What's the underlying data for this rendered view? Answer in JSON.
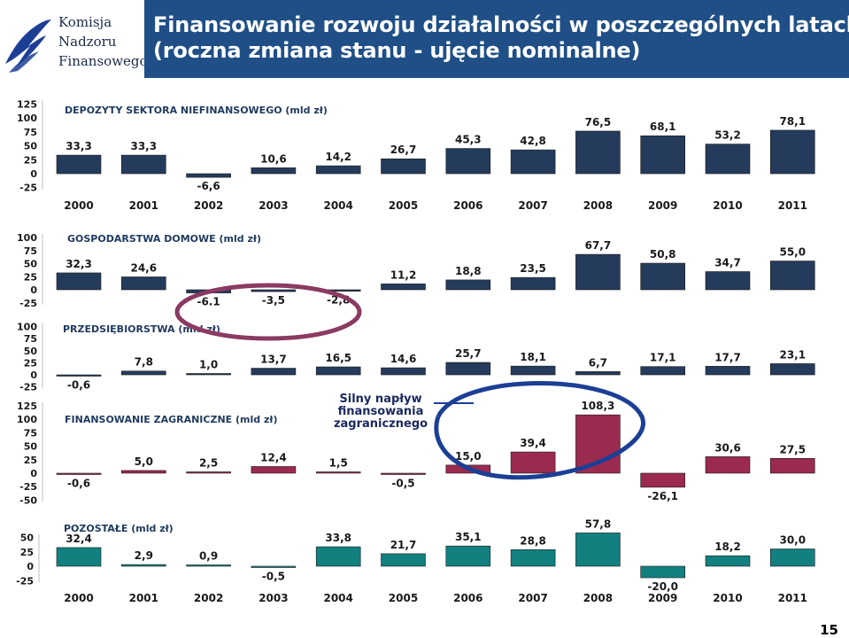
{
  "logo": {
    "lines": [
      "Komisja",
      "Nadzoru",
      "Finansowego"
    ]
  },
  "title": {
    "line1": "Finansowanie rozwoju działalności w poszczególnych latach",
    "line2": "(roczna zmiana stanu - ujęcie nominalne)"
  },
  "callout": {
    "line1": "Silny napływ",
    "line2": "finansowania",
    "line3": "zagranicznego"
  },
  "page_number": "15",
  "colors": {
    "title_bar": "#1f4f86",
    "navy_bar": "#253b5c",
    "maroon_bar": "#9b2a4f",
    "teal_bar": "#138080",
    "circle_purple": "#8b3a62",
    "circle_blue": "#1c3f95"
  },
  "chart_data": [
    {
      "type": "bar",
      "title": "DEPOZYTY SEKTORA NIEFINANSOWEGO (mld zł)",
      "categories": [
        "2000",
        "2001",
        "2002",
        "2003",
        "2004",
        "2005",
        "2006",
        "2007",
        "2008",
        "2009",
        "2010",
        "2011"
      ],
      "values": [
        33.3,
        33.3,
        -6.6,
        10.6,
        14.2,
        26.7,
        45.3,
        42.8,
        76.5,
        68.1,
        53.2,
        78.1
      ],
      "value_labels": [
        "33,3",
        "33,3",
        "-6,6",
        "10,6",
        "14,2",
        "26,7",
        "45,3",
        "42,8",
        "76,5",
        "68,1",
        "53,2",
        "78,1"
      ],
      "yticks": [
        "125",
        "100",
        "75",
        "50",
        "25",
        "0",
        "-25"
      ],
      "ylim": [
        -25,
        125
      ],
      "color": "#253b5c"
    },
    {
      "type": "bar",
      "title": "GOSPODARSTWA DOMOWE (mld zł)",
      "categories": [
        "2000",
        "2001",
        "2002",
        "2003",
        "2004",
        "2005",
        "2006",
        "2007",
        "2008",
        "2009",
        "2010",
        "2011"
      ],
      "values": [
        32.3,
        24.6,
        -6.1,
        -3.5,
        -2.8,
        11.2,
        18.8,
        23.5,
        67.7,
        50.8,
        34.7,
        55.0
      ],
      "value_labels": [
        "32,3",
        "24,6",
        "-6.1",
        "-3,5",
        "-2,8",
        "11,2",
        "18,8",
        "23,5",
        "67,7",
        "50,8",
        "34,7",
        "55,0"
      ],
      "yticks": [
        "100",
        "75",
        "50",
        "25",
        "0",
        "-25"
      ],
      "ylim": [
        -25,
        100
      ],
      "color": "#253b5c"
    },
    {
      "type": "bar",
      "title": "PRZEDSIĘBIORSTWA (mld zł)",
      "categories": [
        "2000",
        "2001",
        "2002",
        "2003",
        "2004",
        "2005",
        "2006",
        "2007",
        "2008",
        "2009",
        "2010",
        "2011"
      ],
      "values": [
        -0.6,
        7.8,
        1.0,
        13.7,
        16.5,
        14.6,
        25.7,
        18.1,
        6.7,
        17.1,
        17.7,
        23.1
      ],
      "value_labels": [
        "-0,6",
        "7,8",
        "1,0",
        "13,7",
        "16,5",
        "14,6",
        "25,7",
        "18,1",
        "6,7",
        "17,1",
        "17,7",
        "23,1"
      ],
      "yticks": [
        "100",
        "75",
        "50",
        "25",
        "0",
        "-25"
      ],
      "ylim": [
        -25,
        100
      ],
      "color": "#253b5c"
    },
    {
      "type": "bar",
      "title": "FINANSOWANIE ZAGRANICZNE (mld zł)",
      "categories": [
        "2000",
        "2001",
        "2002",
        "2003",
        "2004",
        "2005",
        "2006",
        "2007",
        "2008",
        "2009",
        "2010",
        "2011"
      ],
      "values": [
        -0.6,
        5.0,
        2.5,
        12.4,
        1.5,
        -0.5,
        15.0,
        39.4,
        108.3,
        -26.1,
        30.6,
        27.5
      ],
      "value_labels": [
        "-0,6",
        "5,0",
        "2,5",
        "12,4",
        "1,5",
        "-0,5",
        "15,0",
        "39,4",
        "108,3",
        "-26,1",
        "30,6",
        "27,5"
      ],
      "yticks": [
        "125",
        "100",
        "75",
        "50",
        "25",
        "0",
        "-25",
        "-50"
      ],
      "ylim": [
        -50,
        125
      ],
      "color": "#9b2a4f"
    },
    {
      "type": "bar",
      "title": "POZOSTAŁE (mld zł)",
      "categories": [
        "2000",
        "2001",
        "2002",
        "2003",
        "2004",
        "2005",
        "2006",
        "2007",
        "2008",
        "2009",
        "2010",
        "2011"
      ],
      "values": [
        32.4,
        2.9,
        0.9,
        -0.5,
        33.8,
        21.7,
        35.1,
        28.8,
        57.8,
        -20.0,
        18.2,
        30.0
      ],
      "value_labels": [
        "32,4",
        "2,9",
        "0,9",
        "-0,5",
        "33,8",
        "21,7",
        "35,1",
        "28,8",
        "57,8",
        "-20,0",
        "18,2",
        "30,0"
      ],
      "yticks": [
        "50",
        "25",
        "0",
        "-25"
      ],
      "ylim": [
        -25,
        50
      ],
      "color": "#138080"
    }
  ]
}
